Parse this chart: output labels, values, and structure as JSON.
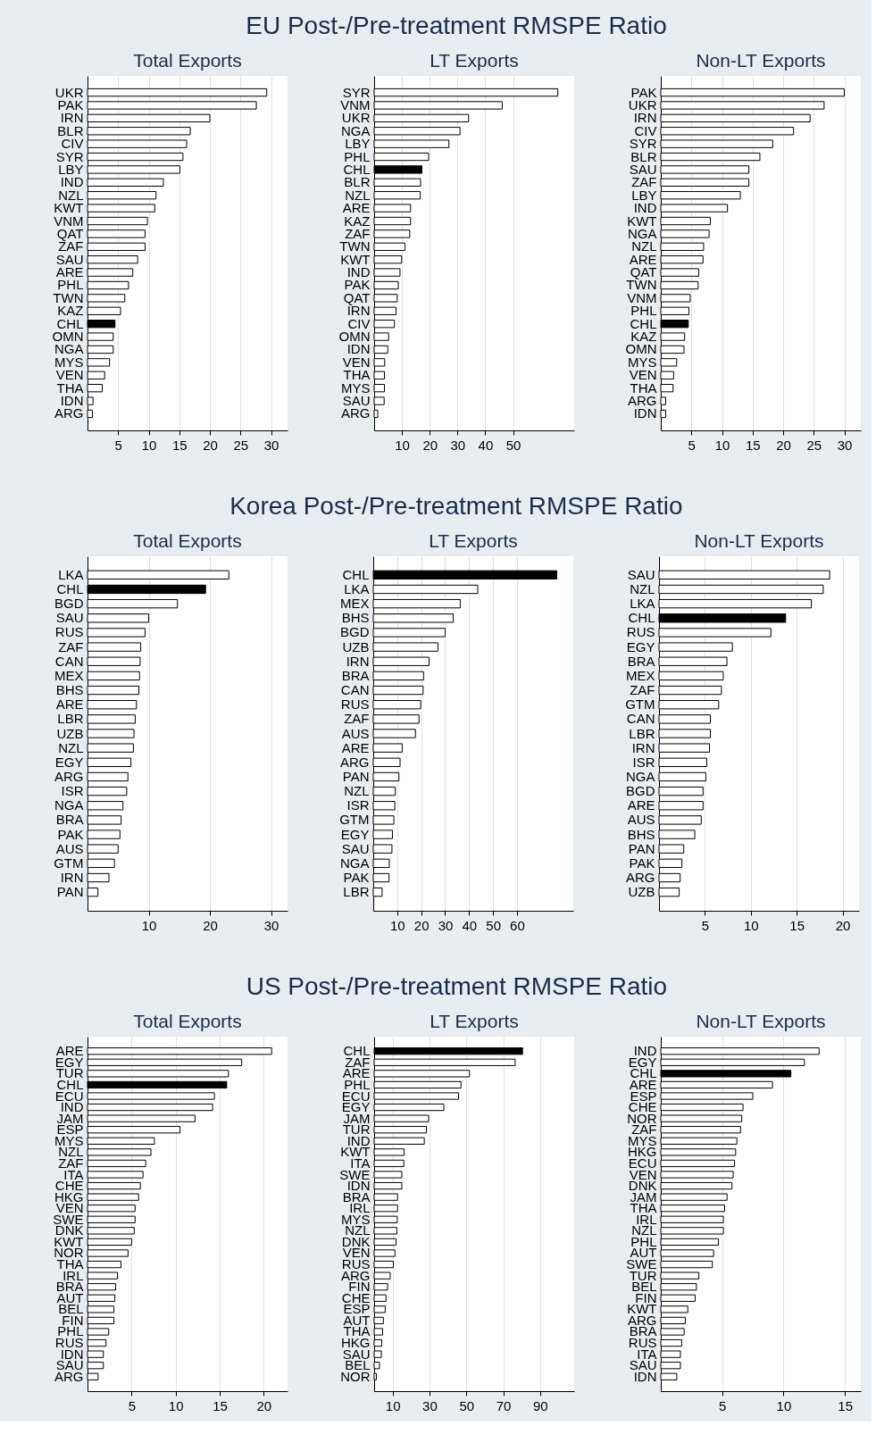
{
  "chart_data": [
    {
      "type": "bar",
      "orientation": "horizontal",
      "title": "Total Exports",
      "annotations": [
        "EU Post-/Pre-treatment RMSPE Ratio"
      ],
      "categories": [
        "UKR",
        "PAK",
        "IRN",
        "BLR",
        "CIV",
        "SYR",
        "LBY",
        "IND",
        "NZL",
        "KWT",
        "VNM",
        "QAT",
        "ZAF",
        "SAU",
        "ARE",
        "PHL",
        "TWN",
        "KAZ",
        "CHL",
        "OMN",
        "NGA",
        "MYS",
        "VEN",
        "THA",
        "IDN",
        "ARG"
      ],
      "values": [
        29.3,
        27.6,
        20.0,
        16.8,
        16.2,
        15.6,
        15.1,
        12.4,
        11.2,
        11.0,
        9.8,
        9.4,
        9.4,
        8.2,
        7.4,
        6.7,
        6.1,
        5.4,
        4.5,
        4.2,
        4.2,
        3.6,
        2.8,
        2.4,
        0.9,
        0.8
      ],
      "colors": [
        "#ffffff",
        "#ffffff",
        "#ffffff",
        "#ffffff",
        "#ffffff",
        "#ffffff",
        "#ffffff",
        "#ffffff",
        "#ffffff",
        "#ffffff",
        "#ffffff",
        "#ffffff",
        "#ffffff",
        "#ffffff",
        "#ffffff",
        "#ffffff",
        "#ffffff",
        "#ffffff",
        "#000000",
        "#ffffff",
        "#ffffff",
        "#ffffff",
        "#ffffff",
        "#ffffff",
        "#ffffff",
        "#ffffff"
      ],
      "xlim": [
        0,
        32.7
      ],
      "xticks": [
        5,
        10,
        15,
        20,
        25,
        30
      ],
      "grid": "x"
    },
    {
      "type": "bar",
      "orientation": "horizontal",
      "title": "LT Exports",
      "categories": [
        "SYR",
        "VNM",
        "UKR",
        "NGA",
        "LBY",
        "PHL",
        "CHL",
        "BLR",
        "NZL",
        "ARE",
        "KAZ",
        "ZAF",
        "TWN",
        "KWT",
        "IND",
        "PAK",
        "QAT",
        "IRN",
        "CIV",
        "OMN",
        "IDN",
        "VEN",
        "THA",
        "MYS",
        "SAU",
        "ARG"
      ],
      "values": [
        66.1,
        46.1,
        34.0,
        30.9,
        26.9,
        19.6,
        17.2,
        16.7,
        16.6,
        13.1,
        13.1,
        12.8,
        11.1,
        9.9,
        9.3,
        8.7,
        8.3,
        7.9,
        7.3,
        5.2,
        4.9,
        3.8,
        3.7,
        3.7,
        3.6,
        1.3
      ],
      "colors": [
        "#ffffff",
        "#ffffff",
        "#ffffff",
        "#ffffff",
        "#ffffff",
        "#ffffff",
        "#000000",
        "#ffffff",
        "#ffffff",
        "#ffffff",
        "#ffffff",
        "#ffffff",
        "#ffffff",
        "#ffffff",
        "#ffffff",
        "#ffffff",
        "#ffffff",
        "#ffffff",
        "#ffffff",
        "#ffffff",
        "#ffffff",
        "#ffffff",
        "#ffffff",
        "#ffffff",
        "#ffffff",
        "#ffffff"
      ],
      "xlim": [
        0,
        72
      ],
      "xticks": [
        10,
        20,
        30,
        40,
        50
      ],
      "grid": "x"
    },
    {
      "type": "bar",
      "orientation": "horizontal",
      "title": "Non-LT Exports",
      "categories": [
        "PAK",
        "UKR",
        "IRN",
        "CIV",
        "SYR",
        "BLR",
        "SAU",
        "ZAF",
        "LBY",
        "IND",
        "KWT",
        "NGA",
        "NZL",
        "ARE",
        "QAT",
        "TWN",
        "VNM",
        "PHL",
        "CHL",
        "KAZ",
        "OMN",
        "MYS",
        "VEN",
        "THA",
        "ARG",
        "IDN"
      ],
      "values": [
        30.0,
        26.7,
        24.4,
        21.7,
        18.3,
        16.2,
        14.4,
        14.4,
        13.0,
        10.9,
        8.1,
        7.9,
        7.0,
        6.9,
        6.2,
        6.1,
        4.8,
        4.6,
        4.5,
        3.9,
        3.8,
        2.6,
        2.1,
        2.0,
        0.8,
        0.8
      ],
      "colors": [
        "#ffffff",
        "#ffffff",
        "#ffffff",
        "#ffffff",
        "#ffffff",
        "#ffffff",
        "#ffffff",
        "#ffffff",
        "#ffffff",
        "#ffffff",
        "#ffffff",
        "#ffffff",
        "#ffffff",
        "#ffffff",
        "#ffffff",
        "#ffffff",
        "#ffffff",
        "#ffffff",
        "#000000",
        "#ffffff",
        "#ffffff",
        "#ffffff",
        "#ffffff",
        "#ffffff",
        "#ffffff",
        "#ffffff"
      ],
      "xlim": [
        0,
        32.7
      ],
      "xticks": [
        5,
        10,
        15,
        20,
        25,
        30
      ],
      "grid": "x"
    },
    {
      "type": "bar",
      "orientation": "horizontal",
      "title": "Total Exports",
      "annotations": [
        "Korea Post-/Pre-treatment RMSPE Ratio"
      ],
      "categories": [
        "LKA",
        "CHL",
        "BGD",
        "SAU",
        "RUS",
        "ZAF",
        "CAN",
        "MEX",
        "BHS",
        "ARE",
        "LBR",
        "UZB",
        "NZL",
        "EGY",
        "ARG",
        "ISR",
        "NGA",
        "BRA",
        "PAK",
        "AUS",
        "GTM",
        "IRN",
        "PAN"
      ],
      "values": [
        23.1,
        19.3,
        14.7,
        10.0,
        9.4,
        8.7,
        8.6,
        8.5,
        8.4,
        8.0,
        7.8,
        7.6,
        7.5,
        7.1,
        6.6,
        6.4,
        5.8,
        5.5,
        5.3,
        5.0,
        4.4,
        3.5,
        1.7
      ],
      "colors": [
        "#ffffff",
        "#000000",
        "#ffffff",
        "#ffffff",
        "#ffffff",
        "#ffffff",
        "#ffffff",
        "#ffffff",
        "#ffffff",
        "#ffffff",
        "#ffffff",
        "#ffffff",
        "#ffffff",
        "#ffffff",
        "#ffffff",
        "#ffffff",
        "#ffffff",
        "#ffffff",
        "#ffffff",
        "#ffffff",
        "#ffffff",
        "#ffffff",
        "#ffffff"
      ],
      "xlim": [
        0,
        32.7
      ],
      "xticks": [
        10,
        20,
        30
      ],
      "grid": "x"
    },
    {
      "type": "bar",
      "orientation": "horizontal",
      "title": "LT Exports",
      "categories": [
        "CHL",
        "LKA",
        "MEX",
        "BHS",
        "BGD",
        "UZB",
        "IRN",
        "BRA",
        "CAN",
        "RUS",
        "ZAF",
        "AUS",
        "ARE",
        "ARG",
        "PAN",
        "NZL",
        "ISR",
        "GTM",
        "EGY",
        "SAU",
        "NGA",
        "PAK",
        "LBR"
      ],
      "values": [
        76.6,
        43.6,
        36.3,
        33.4,
        30.0,
        27.0,
        23.3,
        21.0,
        20.8,
        19.8,
        19.1,
        17.6,
        12.1,
        11.2,
        10.7,
        9.2,
        9.0,
        8.6,
        8.0,
        7.8,
        6.7,
        6.6,
        3.7
      ],
      "colors": [
        "#000000",
        "#ffffff",
        "#ffffff",
        "#ffffff",
        "#ffffff",
        "#ffffff",
        "#ffffff",
        "#ffffff",
        "#ffffff",
        "#ffffff",
        "#ffffff",
        "#ffffff",
        "#ffffff",
        "#ffffff",
        "#ffffff",
        "#ffffff",
        "#ffffff",
        "#ffffff",
        "#ffffff",
        "#ffffff",
        "#ffffff",
        "#ffffff",
        "#ffffff"
      ],
      "xlim": [
        0,
        83.5
      ],
      "xticks": [
        10,
        20,
        30,
        40,
        50,
        60
      ],
      "grid": "x"
    },
    {
      "type": "bar",
      "orientation": "horizontal",
      "title": "Non-LT Exports",
      "categories": [
        "SAU",
        "NZL",
        "LKA",
        "CHL",
        "RUS",
        "EGY",
        "BRA",
        "MEX",
        "ZAF",
        "GTM",
        "CAN",
        "LBR",
        "IRN",
        "ISR",
        "NGA",
        "BGD",
        "ARE",
        "AUS",
        "BHS",
        "PAN",
        "PAK",
        "ARG",
        "UZB"
      ],
      "values": [
        18.6,
        17.9,
        16.6,
        13.8,
        12.2,
        8.0,
        7.4,
        7.0,
        6.8,
        6.5,
        5.6,
        5.6,
        5.5,
        5.2,
        5.1,
        4.8,
        4.8,
        4.6,
        3.9,
        2.7,
        2.5,
        2.3,
        2.2
      ],
      "colors": [
        "#ffffff",
        "#ffffff",
        "#ffffff",
        "#000000",
        "#ffffff",
        "#ffffff",
        "#ffffff",
        "#ffffff",
        "#ffffff",
        "#ffffff",
        "#ffffff",
        "#ffffff",
        "#ffffff",
        "#ffffff",
        "#ffffff",
        "#ffffff",
        "#ffffff",
        "#ffffff",
        "#ffffff",
        "#ffffff",
        "#ffffff",
        "#ffffff",
        "#ffffff"
      ],
      "xlim": [
        0,
        21.8
      ],
      "xticks": [
        5,
        10,
        15,
        20
      ],
      "grid": "x"
    },
    {
      "type": "bar",
      "orientation": "horizontal",
      "title": "Total Exports",
      "annotations": [
        "US Post-/Pre-treatment RMSPE Ratio"
      ],
      "categories": [
        "ARE",
        "EGY",
        "TUR",
        "CHL",
        "ECU",
        "IND",
        "JAM",
        "ESP",
        "MYS",
        "NZL",
        "ZAF",
        "ITA",
        "CHE",
        "HKG",
        "VEN",
        "SWE",
        "DNK",
        "KWT",
        "NOR",
        "THA",
        "IRL",
        "BRA",
        "AUT",
        "BEL",
        "FIN",
        "PHL",
        "RUS",
        "IDN",
        "SAU",
        "ARG"
      ],
      "values": [
        20.9,
        17.5,
        16.0,
        15.8,
        14.4,
        14.2,
        12.2,
        10.5,
        7.6,
        7.2,
        6.6,
        6.3,
        6.0,
        5.8,
        5.4,
        5.4,
        5.3,
        5.0,
        4.6,
        3.8,
        3.4,
        3.2,
        3.1,
        3.0,
        3.0,
        2.4,
        2.1,
        1.8,
        1.8,
        1.2
      ],
      "colors": [
        "#ffffff",
        "#ffffff",
        "#ffffff",
        "#000000",
        "#ffffff",
        "#ffffff",
        "#ffffff",
        "#ffffff",
        "#ffffff",
        "#ffffff",
        "#ffffff",
        "#ffffff",
        "#ffffff",
        "#ffffff",
        "#ffffff",
        "#ffffff",
        "#ffffff",
        "#ffffff",
        "#ffffff",
        "#ffffff",
        "#ffffff",
        "#ffffff",
        "#ffffff",
        "#ffffff",
        "#ffffff",
        "#ffffff",
        "#ffffff",
        "#ffffff",
        "#ffffff",
        "#ffffff"
      ],
      "xlim": [
        0,
        22.7
      ],
      "xticks": [
        5,
        10,
        15,
        20
      ],
      "grid": "x"
    },
    {
      "type": "bar",
      "orientation": "horizontal",
      "title": "LT Exports",
      "categories": [
        "CHL",
        "ZAF",
        "ARE",
        "PHL",
        "ECU",
        "EGY",
        "JAM",
        "TUR",
        "IND",
        "KWT",
        "ITA",
        "SWE",
        "IDN",
        "BRA",
        "IRL",
        "MYS",
        "NZL",
        "DNK",
        "VEN",
        "RUS",
        "ARG",
        "FIN",
        "CHE",
        "ESP",
        "AUT",
        "THA",
        "HKG",
        "SAU",
        "BEL",
        "NOR"
      ],
      "values": [
        80.5,
        76.5,
        51.7,
        47.1,
        45.8,
        37.8,
        29.5,
        28.4,
        27.2,
        16.3,
        16.1,
        15.0,
        15.0,
        12.7,
        12.7,
        12.5,
        12.3,
        11.9,
        11.3,
        10.4,
        8.7,
        7.3,
        6.4,
        6.0,
        5.0,
        4.6,
        4.1,
        3.9,
        2.9,
        1.2
      ],
      "colors": [
        "#000000",
        "#ffffff",
        "#ffffff",
        "#ffffff",
        "#ffffff",
        "#ffffff",
        "#ffffff",
        "#ffffff",
        "#ffffff",
        "#ffffff",
        "#ffffff",
        "#ffffff",
        "#ffffff",
        "#ffffff",
        "#ffffff",
        "#ffffff",
        "#ffffff",
        "#ffffff",
        "#ffffff",
        "#ffffff",
        "#ffffff",
        "#ffffff",
        "#ffffff",
        "#ffffff",
        "#ffffff",
        "#ffffff",
        "#ffffff",
        "#ffffff",
        "#ffffff",
        "#ffffff"
      ],
      "xlim": [
        0,
        108.5
      ],
      "xticks": [
        10,
        30,
        50,
        70,
        90
      ],
      "grid": "x"
    },
    {
      "type": "bar",
      "orientation": "horizontal",
      "title": "Non-LT Exports",
      "categories": [
        "IND",
        "EGY",
        "CHL",
        "ARE",
        "ESP",
        "CHE",
        "NOR",
        "ZAF",
        "MYS",
        "HKG",
        "ECU",
        "VEN",
        "DNK",
        "JAM",
        "THA",
        "IRL",
        "NZL",
        "PHL",
        "AUT",
        "SWE",
        "TUR",
        "BEL",
        "FIN",
        "KWT",
        "ARG",
        "BRA",
        "RUS",
        "ITA",
        "SAU",
        "IDN"
      ],
      "values": [
        12.9,
        11.7,
        10.6,
        9.1,
        7.5,
        6.7,
        6.6,
        6.5,
        6.2,
        6.1,
        6.0,
        5.9,
        5.8,
        5.4,
        5.2,
        5.1,
        5.1,
        4.7,
        4.3,
        4.2,
        3.1,
        2.9,
        2.8,
        2.2,
        2.0,
        1.9,
        1.7,
        1.6,
        1.6,
        1.3
      ],
      "colors": [
        "#ffffff",
        "#ffffff",
        "#000000",
        "#ffffff",
        "#ffffff",
        "#ffffff",
        "#ffffff",
        "#ffffff",
        "#ffffff",
        "#ffffff",
        "#ffffff",
        "#ffffff",
        "#ffffff",
        "#ffffff",
        "#ffffff",
        "#ffffff",
        "#ffffff",
        "#ffffff",
        "#ffffff",
        "#ffffff",
        "#ffffff",
        "#ffffff",
        "#ffffff",
        "#ffffff",
        "#ffffff",
        "#ffffff",
        "#ffffff",
        "#ffffff",
        "#ffffff",
        "#ffffff"
      ],
      "xlim": [
        0,
        16.3
      ],
      "xticks": [
        5,
        10,
        15
      ],
      "grid": "x"
    }
  ]
}
